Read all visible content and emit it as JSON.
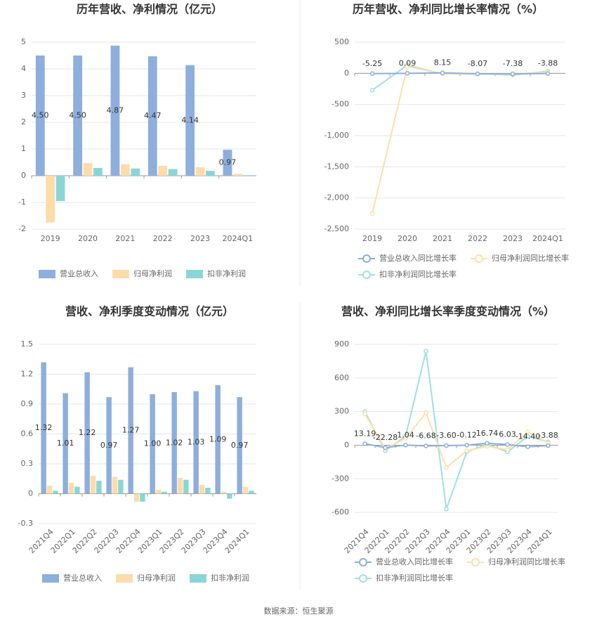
{
  "chart_data": [
    {
      "type": "bar",
      "title": "历年营收、净利情况（亿元）",
      "categories": [
        "2019",
        "2020",
        "2021",
        "2022",
        "2023",
        "2024Q1"
      ],
      "series": [
        {
          "name": "营业总收入",
          "color": "#8eaedc",
          "values": [
            4.5,
            4.5,
            4.87,
            4.47,
            4.14,
            0.97
          ],
          "value_labels": [
            "4.50",
            "4.50",
            "4.87",
            "4.47",
            "4.14",
            "0.97"
          ],
          "data_labels": true
        },
        {
          "name": "归母净利润",
          "color": "#fcdcaa",
          "values": [
            -1.75,
            0.47,
            0.43,
            0.37,
            0.32,
            0.07
          ]
        },
        {
          "name": "扣非净利润",
          "color": "#8ad6d6",
          "values": [
            -0.95,
            0.29,
            0.27,
            0.25,
            0.18,
            0.02
          ]
        }
      ],
      "ylim": [
        -2,
        5
      ],
      "yticks": [
        -2,
        -1,
        0,
        1,
        2,
        3,
        4,
        5
      ],
      "grid": true
    },
    {
      "type": "line",
      "title": "历年营收、净利同比增长率情况（%）",
      "categories": [
        "2019",
        "2020",
        "2021",
        "2022",
        "2023",
        "2024Q1"
      ],
      "series": [
        {
          "name": "营业总收入同比增长率",
          "color": "#8eaedc",
          "values": [
            -5.25,
            0.09,
            8.15,
            -8.07,
            -7.38,
            -3.88
          ],
          "data_labels": true
        },
        {
          "name": "归母净利润同比增长率",
          "color": "#fde0a8",
          "values": [
            -2250,
            110,
            -9,
            -14,
            -13,
            20
          ]
        },
        {
          "name": "扣非净利润同比增长率",
          "color": "#a0e0e0",
          "values": [
            -270,
            130,
            -8,
            -7,
            -28,
            35
          ]
        }
      ],
      "ylim": [
        -2500,
        500
      ],
      "yticks": [
        {
          "value": -2500,
          "label": "-2,500"
        },
        {
          "value": -2000,
          "label": "-2,000"
        },
        {
          "value": -1500,
          "label": "-1,500"
        },
        {
          "value": -1000,
          "label": "-1,000"
        },
        -500,
        0,
        500
      ],
      "grid": true
    },
    {
      "type": "bar",
      "title": "营收、净利季度变动情况（亿元）",
      "categories": [
        "2021Q4",
        "2022Q1",
        "2022Q2",
        "2022Q3",
        "2022Q4",
        "2023Q1",
        "2023Q2",
        "2023Q3",
        "2023Q4",
        "2024Q1"
      ],
      "series": [
        {
          "name": "营业总收入",
          "color": "#8eaedc",
          "values": [
            1.32,
            1.01,
            1.22,
            0.97,
            1.27,
            1.0,
            1.02,
            1.03,
            1.09,
            0.97
          ],
          "value_labels": [
            "1.32",
            "1.01",
            "1.22",
            "0.97",
            "1.27",
            "1.00",
            "1.02",
            "1.03",
            "1.09",
            "0.97"
          ],
          "data_labels": true
        },
        {
          "name": "归母净利润",
          "color": "#fcdcaa",
          "values": [
            0.08,
            0.11,
            0.18,
            0.17,
            -0.08,
            0.04,
            0.16,
            0.09,
            0.02,
            0.07
          ]
        },
        {
          "name": "扣非净利润",
          "color": "#8ad6d6",
          "values": [
            0.03,
            0.07,
            0.13,
            0.14,
            -0.08,
            0.02,
            0.14,
            0.06,
            -0.05,
            0.03
          ]
        }
      ],
      "ylim": [
        -0.3,
        1.5
      ],
      "yticks": [
        -0.3,
        0,
        0.3,
        0.6,
        0.9,
        1.2,
        1.5
      ],
      "grid": true
    },
    {
      "type": "line",
      "title": "营收、净利同比增长率季度变动情况（%）",
      "categories": [
        "2021Q4",
        "2022Q1",
        "2022Q2",
        "2022Q3",
        "2022Q4",
        "2023Q1",
        "2023Q2",
        "2023Q3",
        "2023Q4",
        "2024Q1"
      ],
      "series": [
        {
          "name": "营业总收入同比增长率",
          "color": "#8eaedc",
          "values": [
            13.19,
            -22.28,
            1.04,
            -6.68,
            -3.6,
            -0.12,
            16.74,
            6.03,
            -14.4,
            -3.88
          ],
          "value_labels": [
            "13.19",
            "-22.28",
            "1.04",
            "-6.68",
            "-3.60",
            "-0.12",
            "16.74",
            "6.03",
            "-14.40",
            "-3.88"
          ],
          "data_labels": true
        },
        {
          "name": "归母净利润同比增长率",
          "color": "#fde0a8",
          "values": [
            280,
            -30,
            60,
            290,
            -200,
            -50,
            -10,
            -40,
            120,
            20
          ]
        },
        {
          "name": "扣非净利润同比增长率",
          "color": "#a0e0e0",
          "values": [
            300,
            -50,
            80,
            840,
            -570,
            -60,
            10,
            -60,
            80,
            30
          ]
        }
      ],
      "ylim": [
        -700,
        900
      ],
      "yticks": [
        -600,
        -300,
        0,
        300,
        600,
        900
      ],
      "grid": true
    }
  ],
  "footer": "数据来源：恒生聚源"
}
